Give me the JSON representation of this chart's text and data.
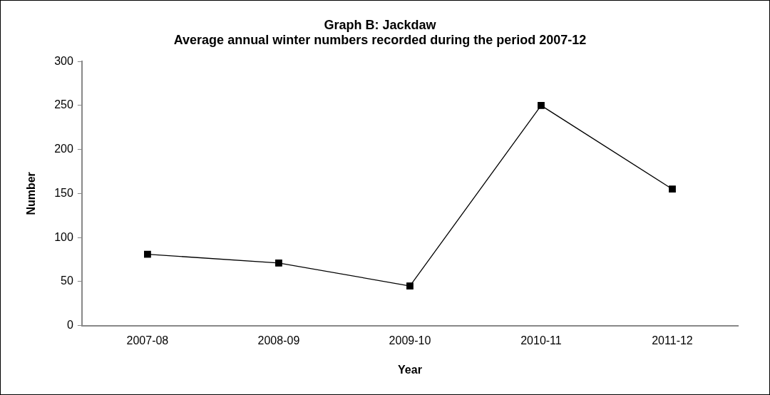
{
  "chart_data": {
    "type": "line",
    "title": [
      "Graph B: Jackdaw",
      "Average annual winter numbers recorded during the period 2007-12"
    ],
    "xlabel": "Year",
    "ylabel": "Number",
    "categories": [
      "2007-08",
      "2008-09",
      "2009-10",
      "2010-11",
      "2011-12"
    ],
    "series": [
      {
        "color": "#000000",
        "values": [
          81,
          71,
          45,
          250,
          155
        ]
      }
    ],
    "ylim": [
      0,
      300
    ],
    "yticks": [
      0,
      50,
      100,
      150,
      200,
      250,
      300
    ],
    "grid": false,
    "legend": false,
    "marker": "square",
    "line_style": "solid"
  }
}
